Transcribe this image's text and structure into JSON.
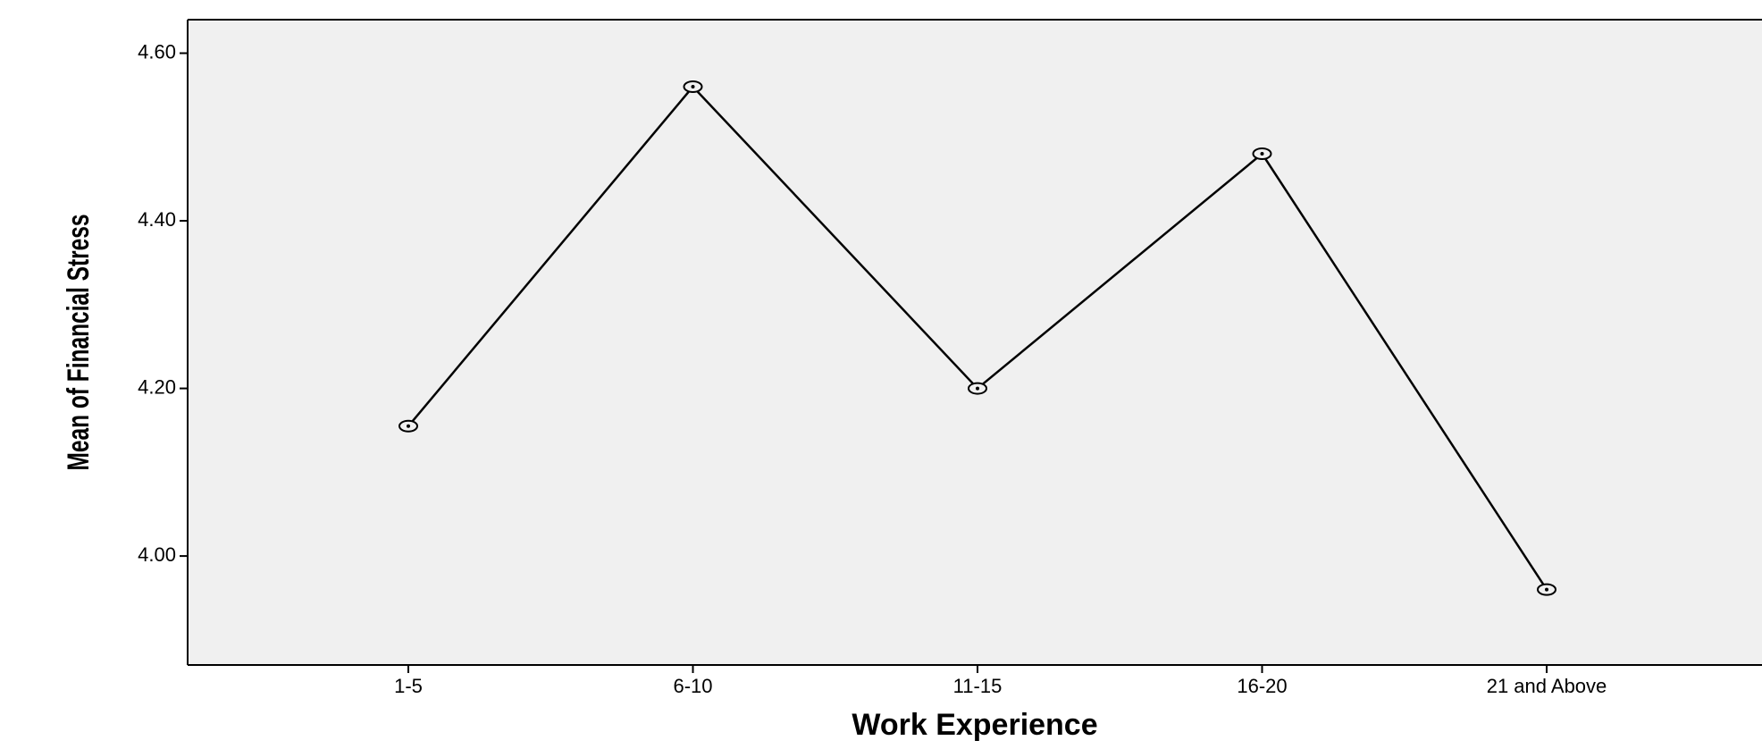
{
  "chart_data": {
    "type": "line",
    "title": "",
    "xlabel": "Work Experience",
    "ylabel": "Mean of Financial Stress",
    "categories": [
      "1-5",
      "6-10",
      "11-15",
      "16-20",
      "21 and Above"
    ],
    "series": [
      {
        "values": [
          4.155,
          4.56,
          4.2,
          4.48,
          3.96
        ]
      }
    ],
    "ylim": [
      3.87,
      4.64
    ],
    "yticks": [
      "4.00",
      "4.20",
      "4.40",
      "4.60"
    ],
    "grid": false,
    "legend": "none",
    "colors": {
      "plot_background": "#f0f0f0",
      "line": "#000000",
      "marker": "#000000"
    }
  }
}
